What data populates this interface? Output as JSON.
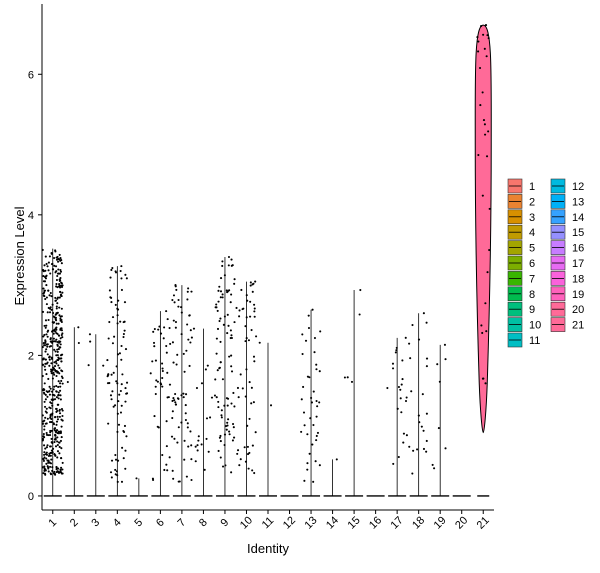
{
  "chart_data": {
    "type": "violin",
    "xlabel": "Identity",
    "ylabel": "Expression Level",
    "categories": [
      "1",
      "2",
      "3",
      "4",
      "5",
      "6",
      "7",
      "8",
      "9",
      "10",
      "11",
      "12",
      "13",
      "14",
      "15",
      "16",
      "17",
      "18",
      "19",
      "20",
      "21"
    ],
    "ylim": [
      -0.2,
      7.0
    ],
    "yticks": [
      0,
      2,
      4,
      6
    ],
    "grid": false,
    "legend_position": "right",
    "legend_entries": [
      "1",
      "2",
      "3",
      "4",
      "5",
      "6",
      "7",
      "8",
      "9",
      "10",
      "11",
      "12",
      "13",
      "14",
      "15",
      "16",
      "17",
      "18",
      "19",
      "20",
      "21"
    ],
    "colors": [
      "#F8766D",
      "#EA8331",
      "#D89000",
      "#C09B00",
      "#A3A500",
      "#7CAE00",
      "#39B600",
      "#00BB4E",
      "#00BF7D",
      "#00C1A3",
      "#00BFC4",
      "#00BAE0",
      "#00B0F6",
      "#35A2FF",
      "#9590FF",
      "#C77CFF",
      "#E76BF3",
      "#FA62DB",
      "#FF62BC",
      "#FF6A98",
      "#FF6A98"
    ],
    "series": [
      {
        "category": "1",
        "max": 3.52,
        "nonzero_count": 500,
        "nonzero_range": [
          0.3,
          3.5
        ]
      },
      {
        "category": "2",
        "max": 2.4,
        "nonzero_count": 3,
        "nonzero_range": [
          0.5,
          2.4
        ]
      },
      {
        "category": "3",
        "max": 2.3,
        "nonzero_count": 4,
        "nonzero_range": [
          1.6,
          2.3
        ]
      },
      {
        "category": "4",
        "max": 3.27,
        "nonzero_count": 90,
        "nonzero_range": [
          0.2,
          3.27
        ]
      },
      {
        "category": "5",
        "max": 0.25,
        "nonzero_count": 1,
        "nonzero_range": [
          0.25,
          0.25
        ]
      },
      {
        "category": "6",
        "max": 2.63,
        "nonzero_count": 45,
        "nonzero_range": [
          0.2,
          2.63
        ]
      },
      {
        "category": "7",
        "max": 3.0,
        "nonzero_count": 70,
        "nonzero_range": [
          0.2,
          3.0
        ]
      },
      {
        "category": "8",
        "max": 2.38,
        "nonzero_count": 18,
        "nonzero_range": [
          0.3,
          2.38
        ]
      },
      {
        "category": "9",
        "max": 3.4,
        "nonzero_count": 90,
        "nonzero_range": [
          0.3,
          3.4
        ]
      },
      {
        "category": "10",
        "max": 3.05,
        "nonzero_count": 55,
        "nonzero_range": [
          0.3,
          3.05
        ]
      },
      {
        "category": "11",
        "max": 2.18,
        "nonzero_count": 2,
        "nonzero_range": [
          0.85,
          2.18
        ]
      },
      {
        "category": "12",
        "max": 0,
        "nonzero_count": 0,
        "nonzero_range": [
          0,
          0
        ]
      },
      {
        "category": "13",
        "max": 2.65,
        "nonzero_count": 40,
        "nonzero_range": [
          0.2,
          2.65
        ]
      },
      {
        "category": "14",
        "max": 0.52,
        "nonzero_count": 1,
        "nonzero_range": [
          0.52,
          0.52
        ]
      },
      {
        "category": "15",
        "max": 2.93,
        "nonzero_count": 5,
        "nonzero_range": [
          0.75,
          2.93
        ]
      },
      {
        "category": "16",
        "max": 0,
        "nonzero_count": 0,
        "nonzero_range": [
          0,
          0
        ]
      },
      {
        "category": "17",
        "max": 2.25,
        "nonzero_count": 22,
        "nonzero_range": [
          0.4,
          2.25
        ]
      },
      {
        "category": "18",
        "max": 2.6,
        "nonzero_count": 22,
        "nonzero_range": [
          0.3,
          2.6
        ]
      },
      {
        "category": "19",
        "max": 2.15,
        "nonzero_count": 8,
        "nonzero_range": [
          0.3,
          2.15
        ]
      },
      {
        "category": "20",
        "max": 0,
        "nonzero_count": 0,
        "nonzero_range": [
          0,
          0
        ]
      },
      {
        "category": "21",
        "max": 6.7,
        "nonzero_count": 30,
        "nonzero_range": [
          1.5,
          6.7
        ]
      }
    ]
  }
}
